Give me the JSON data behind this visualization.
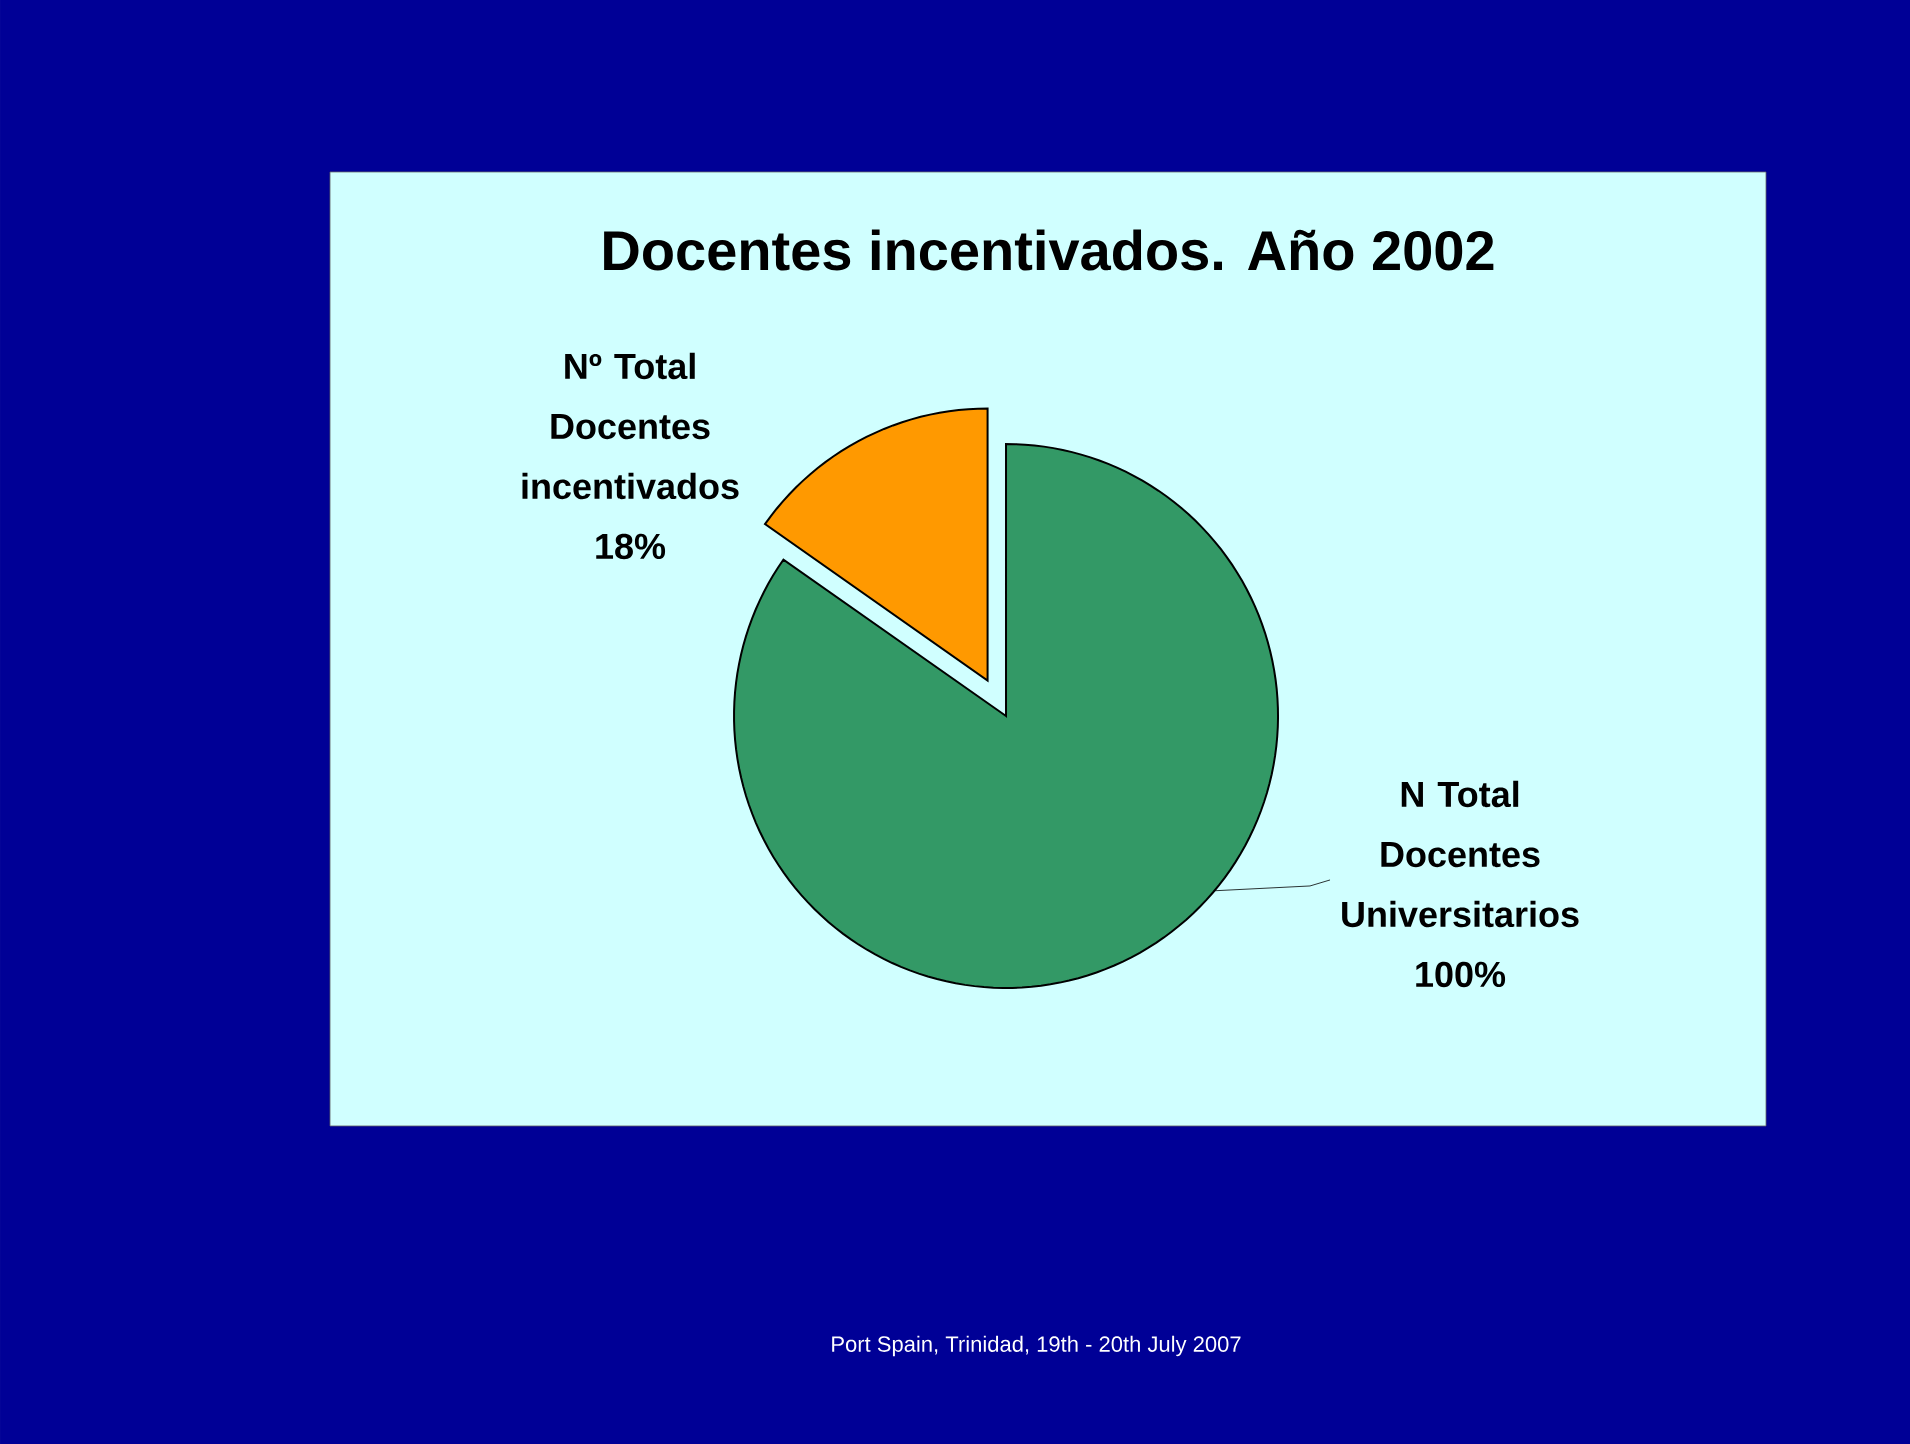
{
  "chart_data": {
    "type": "pie",
    "title": "Docentes incentivados. Año 2002",
    "categories": [
      "Nº Total Docentes incentivados",
      "N Total Docentes Universitarios"
    ],
    "values": [
      18,
      100
    ],
    "colors": [
      "#ff9900",
      "#339966"
    ],
    "value_labels": [
      "18%",
      "100%"
    ],
    "annotations": [
      "Port Spain, Trinidad, 19th - 20th July 2007"
    ]
  }
}
